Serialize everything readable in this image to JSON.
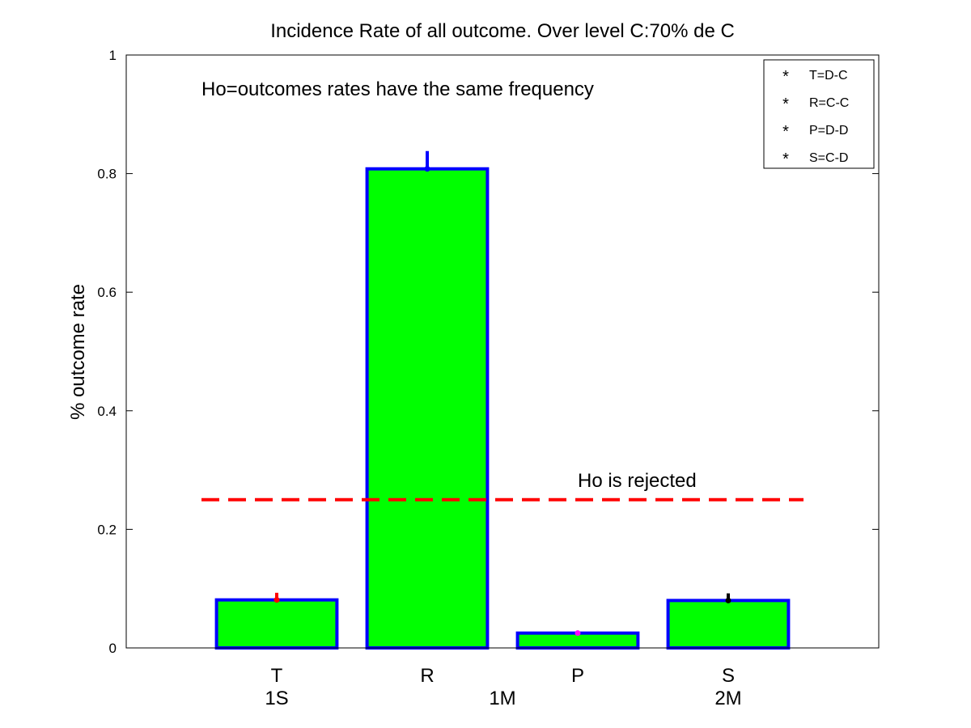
{
  "chart_data": {
    "type": "bar",
    "title": "Incidence Rate of all outcome. Over level C:70% de C",
    "ylabel": "% outcome rate",
    "xlabel": "",
    "categories": [
      "T",
      "R",
      "P",
      "S"
    ],
    "values": [
      0.081,
      0.808,
      0.025,
      0.08
    ],
    "error_tips": [
      0.093,
      0.838,
      0.028,
      0.092
    ],
    "error_colors": [
      "#ff0000",
      "#0000ff",
      "#ff00ff",
      "#000000"
    ],
    "secondary_labels": [
      {
        "text": "1S",
        "x": 1.0
      },
      {
        "text": "1M",
        "x": 2.5
      },
      {
        "text": "2M",
        "x": 4.0
      }
    ],
    "ylim": [
      0,
      1
    ],
    "xlim": [
      0,
      5
    ],
    "yticks": [
      0,
      0.2,
      0.4,
      0.6,
      0.8,
      1
    ],
    "ytick_labels": [
      "0",
      "0.2",
      "0.4",
      "0.6",
      "0.8",
      "1"
    ],
    "grid": false,
    "threshold": {
      "y": 0.25,
      "x_start": 0.5,
      "x_end": 4.5,
      "color": "#ff0000",
      "style": "dashed"
    },
    "annotations": [
      {
        "text": "Ho=outcomes rates have the same frequency",
        "x": 0.5,
        "y": 0.945
      },
      {
        "text": "Ho is rejected",
        "x": 3.0,
        "y": 0.278
      }
    ],
    "legend": {
      "placement": "top-right",
      "entries": [
        {
          "label": "T=D-C",
          "color": "#ff0000",
          "marker": "*"
        },
        {
          "label": "R=C-C",
          "color": "#0000ff",
          "marker": "*"
        },
        {
          "label": "P=D-D",
          "color": "#ff00ff",
          "marker": "*"
        },
        {
          "label": "S=C-D",
          "color": "#000000",
          "marker": "*"
        }
      ]
    },
    "bar_fill": "#00ff00",
    "bar_edge": "#0000ff"
  }
}
